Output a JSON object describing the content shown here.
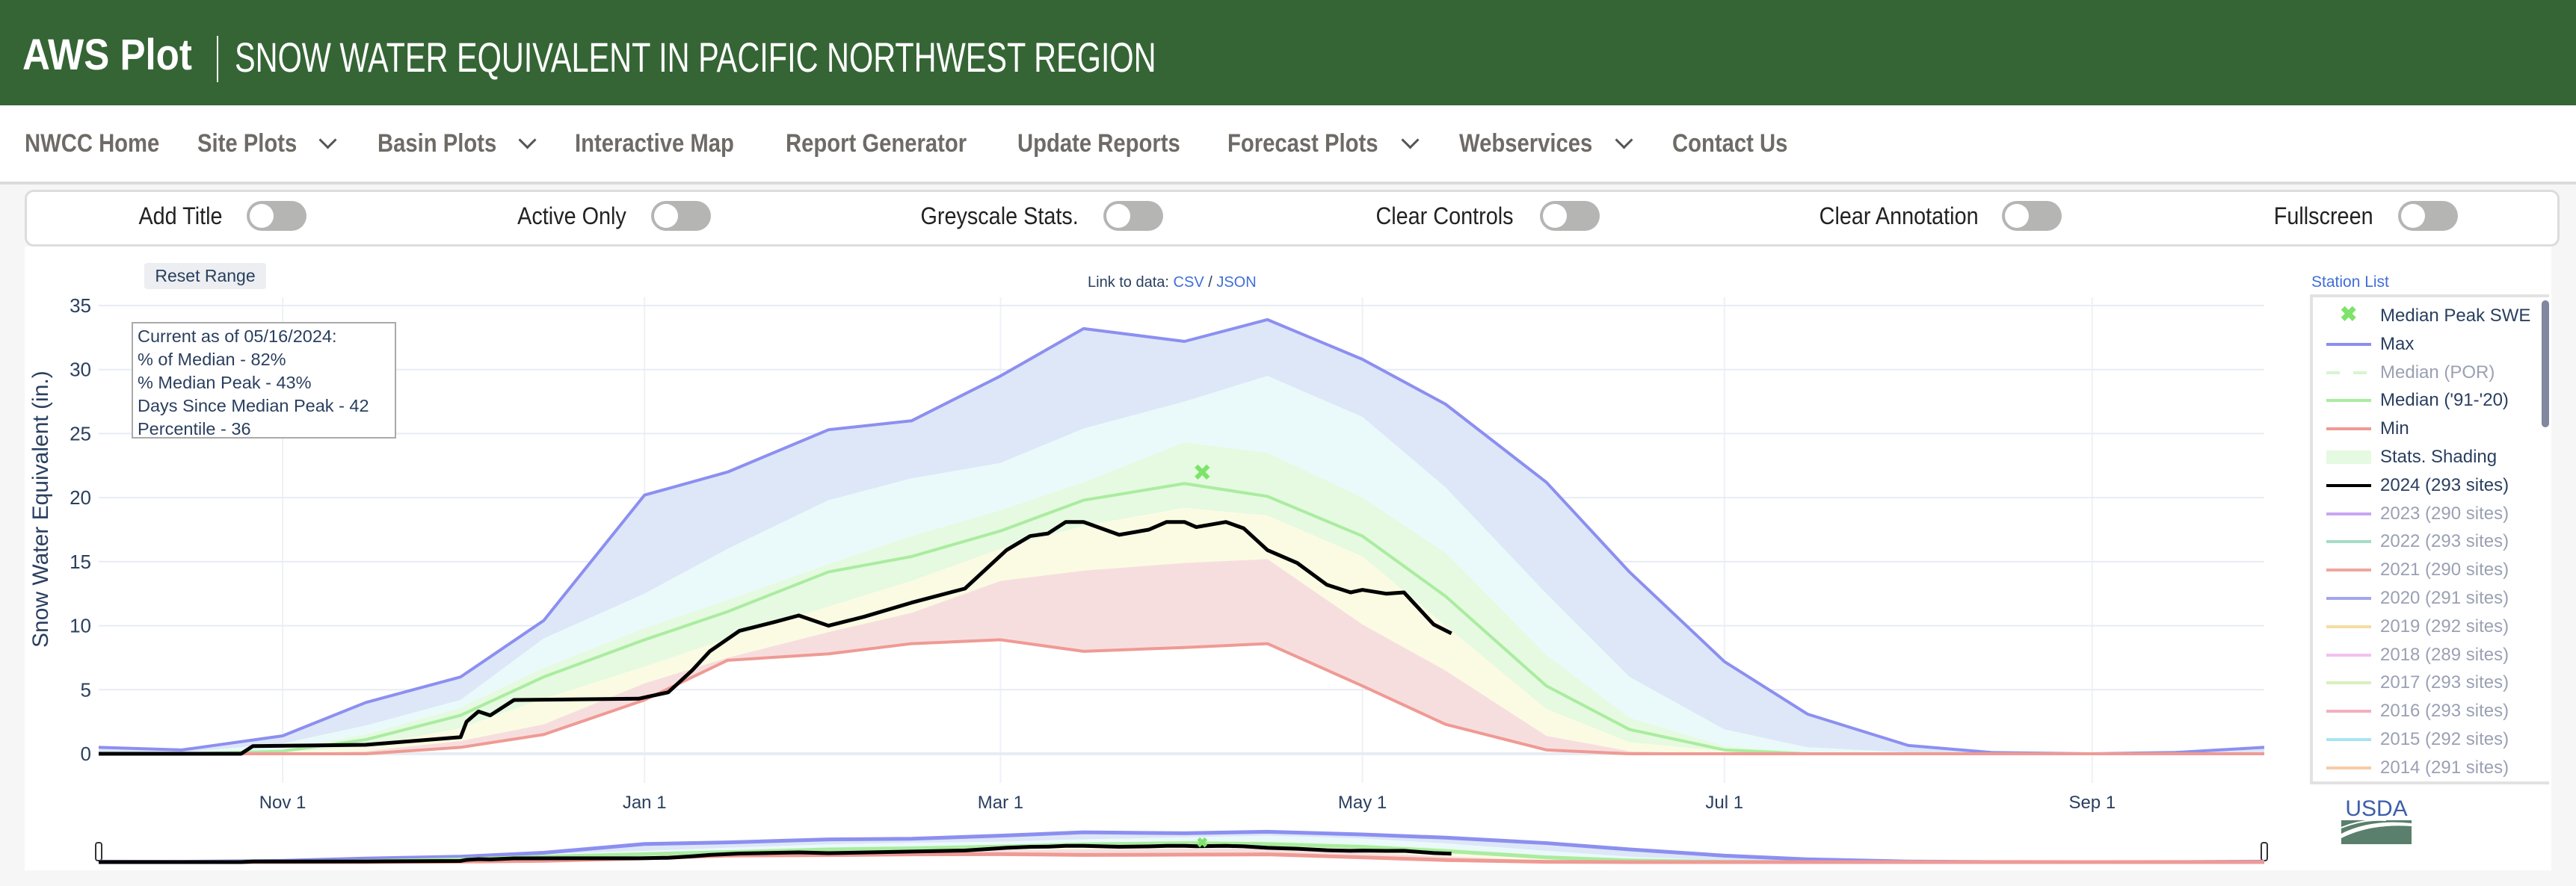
{
  "header": {
    "brand": "AWS Plot",
    "title": "SNOW WATER EQUIVALENT IN PACIFIC NORTHWEST REGION",
    "bg_color": "#356535"
  },
  "nav": {
    "items": [
      {
        "label": "NWCC Home",
        "dropdown": false
      },
      {
        "label": "Site Plots",
        "dropdown": true
      },
      {
        "label": "Basin Plots",
        "dropdown": true
      },
      {
        "label": "Interactive Map",
        "dropdown": false
      },
      {
        "label": "Report Generator",
        "dropdown": false
      },
      {
        "label": "Update Reports",
        "dropdown": false
      },
      {
        "label": "Forecast Plots",
        "dropdown": true
      },
      {
        "label": "Webservices",
        "dropdown": true
      },
      {
        "label": "Contact Us",
        "dropdown": false
      }
    ]
  },
  "toolbar": {
    "toggles": [
      {
        "label": "Add Title",
        "on": false
      },
      {
        "label": "Active Only",
        "on": false
      },
      {
        "label": "Greyscale Stats.",
        "on": false
      },
      {
        "label": "Clear Controls",
        "on": false
      },
      {
        "label": "Clear Annotation",
        "on": false
      },
      {
        "label": "Fullscreen",
        "on": false
      }
    ]
  },
  "controls": {
    "reset_range": "Reset Range",
    "link_prefix": "Link to data:",
    "csv": "CSV",
    "slash": "/",
    "json": "JSON",
    "station_list": "Station List"
  },
  "annotation": {
    "lines": [
      "Current as of 05/16/2024:",
      "% of Median - 82%",
      "% Median Peak - 43%",
      "Days Since Median Peak - 42",
      "Percentile - 36"
    ]
  },
  "logo": {
    "text": "USDA"
  },
  "legend": {
    "items": [
      {
        "label": "Median Peak SWE",
        "color": "#7de36a",
        "type": "marker",
        "active": true
      },
      {
        "label": "Max",
        "color": "#8c8ff0",
        "type": "line",
        "active": true
      },
      {
        "label": "Median (POR)",
        "color": "#d6f5d0",
        "type": "dash",
        "active": false
      },
      {
        "label": "Median ('91-'20)",
        "color": "#aaeca0",
        "type": "line",
        "active": true
      },
      {
        "label": "Min",
        "color": "#ef9a94",
        "type": "line",
        "active": true
      },
      {
        "label": "Stats. Shading",
        "color": "#e5fae0",
        "type": "box",
        "active": true
      },
      {
        "label": "2024 (293 sites)",
        "color": "#000000",
        "type": "line",
        "active": true
      },
      {
        "label": "2023 (290 sites)",
        "color": "#c9a6f3",
        "type": "line",
        "active": false
      },
      {
        "label": "2022 (293 sites)",
        "color": "#a6dcc5",
        "type": "line",
        "active": false
      },
      {
        "label": "2021 (290 sites)",
        "color": "#efa79e",
        "type": "line",
        "active": false
      },
      {
        "label": "2020 (291 sites)",
        "color": "#a3a5ef",
        "type": "line",
        "active": false
      },
      {
        "label": "2019 (292 sites)",
        "color": "#f5dca3",
        "type": "line",
        "active": false
      },
      {
        "label": "2018 (289 sites)",
        "color": "#f2c1f2",
        "type": "line",
        "active": false
      },
      {
        "label": "2017 (293 sites)",
        "color": "#d9efc0",
        "type": "line",
        "active": false
      },
      {
        "label": "2016 (293 sites)",
        "color": "#f2b0c0",
        "type": "line",
        "active": false
      },
      {
        "label": "2015 (292 sites)",
        "color": "#a9e3f2",
        "type": "line",
        "active": false
      },
      {
        "label": "2014 (291 sites)",
        "color": "#f7cba6",
        "type": "line",
        "active": false
      }
    ]
  },
  "chart_data": {
    "type": "area",
    "ylabel": "Snow Water Equivalent (in.)",
    "ylim": [
      0,
      35
    ],
    "yticks": [
      "0",
      "5",
      "10",
      "15",
      "20",
      "25",
      "30",
      "35"
    ],
    "xlim": [
      "2023-10-01",
      "2024-09-30"
    ],
    "xticks": [
      {
        "date": "2023-11-01",
        "label": "Nov 1"
      },
      {
        "date": "2024-01-01",
        "label": "Jan 1"
      },
      {
        "date": "2024-03-01",
        "label": "Mar 1"
      },
      {
        "date": "2024-05-01",
        "label": "May 1"
      },
      {
        "date": "2024-07-01",
        "label": "Jul 1"
      },
      {
        "date": "2024-09-01",
        "label": "Sep 1"
      }
    ],
    "grid": true,
    "legend_position": "right",
    "stats_dates": [
      "2023-10-01",
      "2023-10-15",
      "2023-11-01",
      "2023-11-15",
      "2023-12-01",
      "2023-12-15",
      "2024-01-01",
      "2024-01-15",
      "2024-02-01",
      "2024-02-15",
      "2024-03-01",
      "2024-03-15",
      "2024-04-01",
      "2024-04-15",
      "2024-05-01",
      "2024-05-15",
      "2024-06-01",
      "2024-06-15",
      "2024-07-01",
      "2024-07-15",
      "2024-08-01",
      "2024-08-15",
      "2024-09-01",
      "2024-09-15",
      "2024-09-30"
    ],
    "max": [
      0.5,
      0.3,
      1.4,
      4,
      6,
      10.4,
      20.2,
      22,
      25.3,
      26,
      29.5,
      33.2,
      32.2,
      33.9,
      30.8,
      27.3,
      21.2,
      14.2,
      7.2,
      3.1,
      0.65,
      0.1,
      0,
      0.1,
      0.5
    ],
    "p90": [
      0.1,
      0.1,
      0.8,
      2.2,
      4.2,
      9,
      12.5,
      16,
      19.8,
      21.5,
      22.7,
      25.4,
      27.5,
      29.5,
      26.3,
      20.8,
      12.5,
      6,
      1.9,
      0.5,
      0.1,
      0,
      0,
      0,
      0
    ],
    "p70": [
      0,
      0,
      0.3,
      1.5,
      3.6,
      6.7,
      9.8,
      12,
      14.8,
      17,
      19,
      21.2,
      24.3,
      23.5,
      20,
      15.7,
      7.7,
      2.8,
      0.6,
      0.1,
      0,
      0,
      0,
      0,
      0
    ],
    "median": [
      0,
      0,
      0.2,
      1.1,
      3.0,
      6.0,
      8.9,
      11.1,
      14.2,
      15.4,
      17.4,
      19.8,
      21.1,
      20.1,
      17,
      12.3,
      5.3,
      1.9,
      0.3,
      0,
      0,
      0,
      0,
      0,
      0
    ],
    "p30": [
      0,
      0,
      0.1,
      0.6,
      2.0,
      4.3,
      6.8,
      9.0,
      11.5,
      13.5,
      16,
      17.8,
      19.2,
      18.6,
      15.4,
      10,
      3.5,
      0.9,
      0.2,
      0,
      0,
      0,
      0,
      0,
      0
    ],
    "p10": [
      0,
      0,
      0,
      0.2,
      1.0,
      2.3,
      5.5,
      7.5,
      9.5,
      11,
      13.5,
      14.3,
      14.9,
      15.2,
      10.1,
      6.5,
      1.4,
      0.2,
      0,
      0,
      0,
      0,
      0,
      0,
      0
    ],
    "min": [
      0,
      0,
      0,
      0,
      0.5,
      1.5,
      4.2,
      7.3,
      7.8,
      8.6,
      8.9,
      8.0,
      8.3,
      8.6,
      5.3,
      2.3,
      0.3,
      0,
      0,
      0,
      0,
      0,
      0,
      0,
      0
    ],
    "band_colors": [
      "#dde7f8",
      "#eafafa",
      "#e5fae0",
      "#fbfbe3",
      "#f7dede"
    ],
    "current_year": {
      "name": "2024 (293 sites)",
      "dates": [
        "2023-10-01",
        "2023-10-25",
        "2023-10-27",
        "2023-11-15",
        "2023-12-01",
        "2023-12-02",
        "2023-12-04",
        "2023-12-06",
        "2023-12-10",
        "2023-12-31",
        "2024-01-05",
        "2024-01-09",
        "2024-01-12",
        "2024-01-17",
        "2024-01-23",
        "2024-01-27",
        "2024-02-01",
        "2024-02-07",
        "2024-02-15",
        "2024-02-24",
        "2024-03-02",
        "2024-03-06",
        "2024-03-09",
        "2024-03-12",
        "2024-03-15",
        "2024-03-21",
        "2024-03-26",
        "2024-03-29",
        "2024-04-01",
        "2024-04-03",
        "2024-04-08",
        "2024-04-11",
        "2024-04-15",
        "2024-04-20",
        "2024-04-25",
        "2024-04-29",
        "2024-05-01",
        "2024-05-05",
        "2024-05-08",
        "2024-05-13",
        "2024-05-16"
      ],
      "values": [
        0,
        0,
        0.6,
        0.7,
        1.3,
        2.5,
        3.3,
        3.0,
        4.2,
        4.3,
        4.8,
        6.5,
        8.0,
        9.6,
        10.3,
        10.8,
        10.0,
        10.7,
        11.8,
        12.9,
        15.9,
        17.0,
        17.2,
        18.1,
        18.1,
        17.1,
        17.5,
        18.1,
        18.1,
        17.7,
        18.1,
        17.6,
        15.9,
        14.9,
        13.2,
        12.6,
        12.8,
        12.5,
        12.6,
        10.1,
        9.4
      ]
    },
    "median_peak": {
      "date": "2024-04-04",
      "value": 22
    }
  }
}
